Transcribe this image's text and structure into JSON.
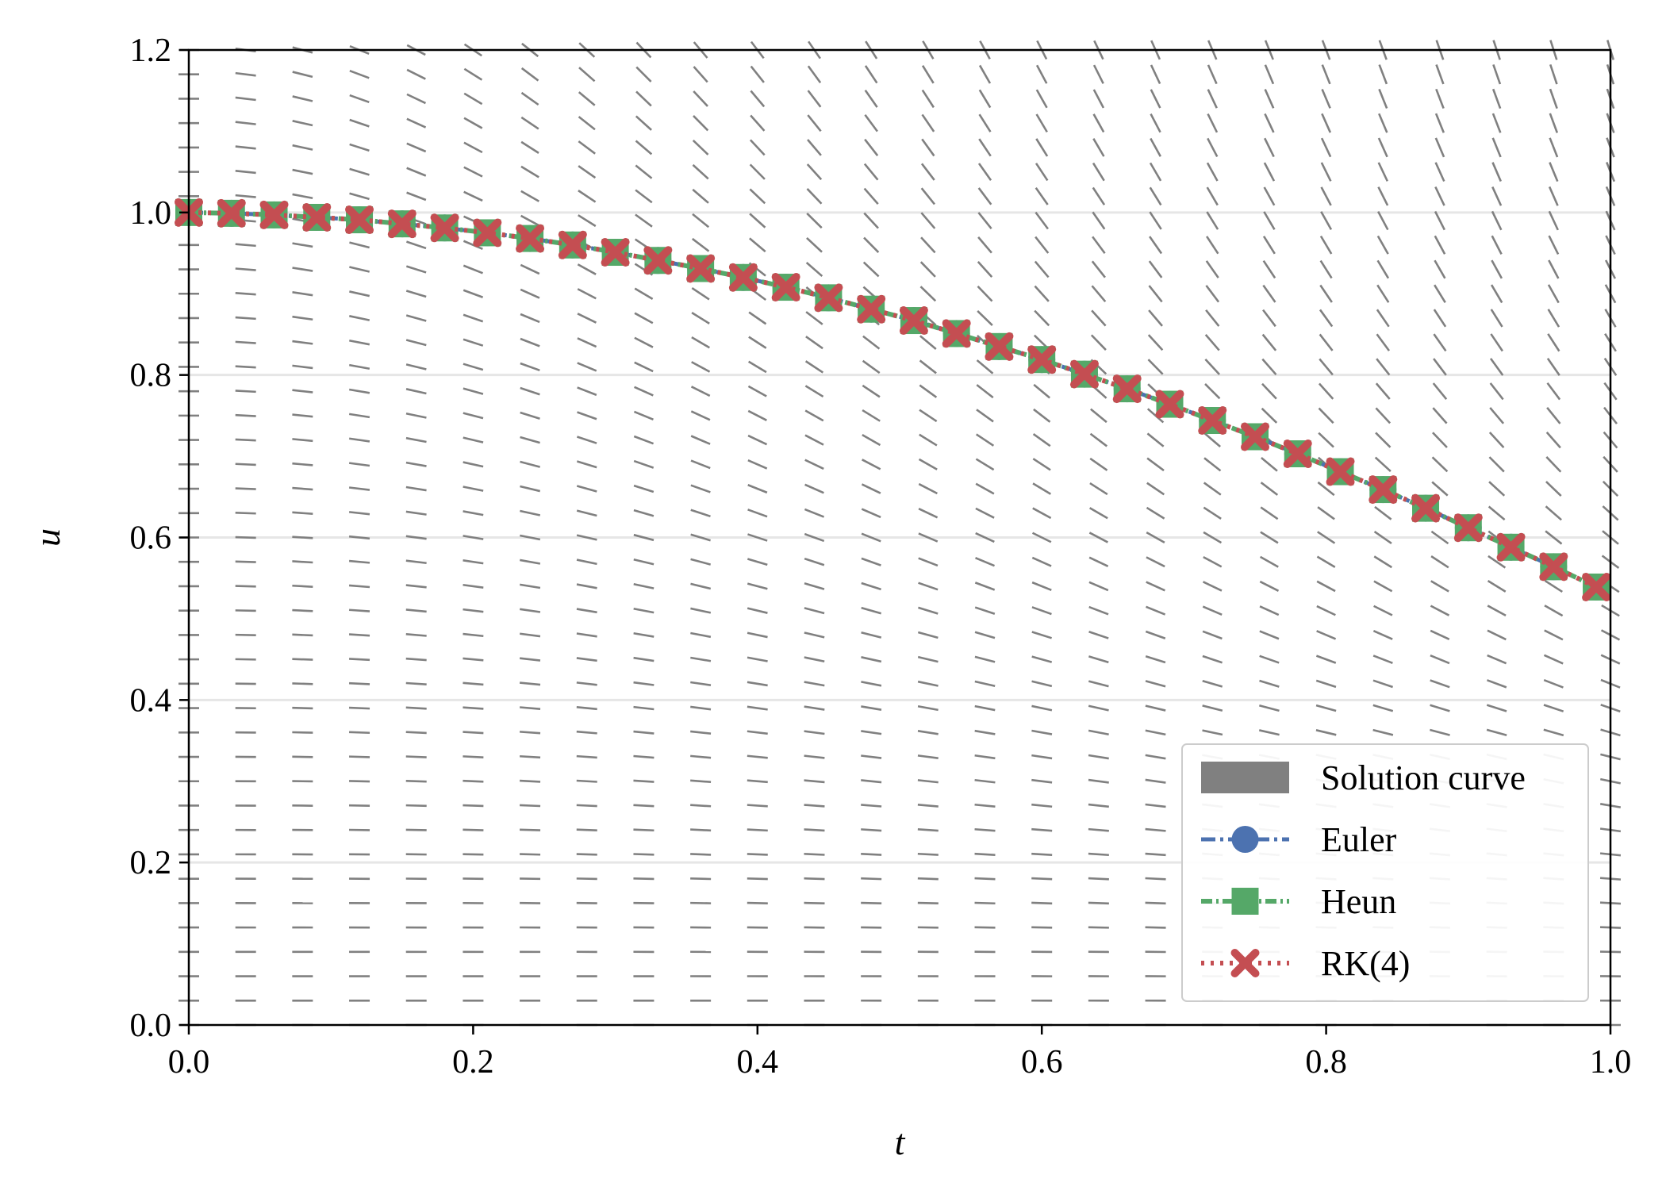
{
  "chart_data": {
    "type": "line",
    "xlabel": "t",
    "ylabel": "u",
    "xlim": [
      0.0,
      1.0
    ],
    "ylim": [
      0.0,
      1.2
    ],
    "xticks": [
      "0.0",
      "0.2",
      "0.4",
      "0.6",
      "0.8",
      "1.0"
    ],
    "yticks": [
      "0.0",
      "0.2",
      "0.4",
      "0.6",
      "0.8",
      "1.0",
      "1.2"
    ],
    "grid": "horizontal",
    "legend_position": "lower-right",
    "direction_field": {
      "t_columns": [
        0.0,
        0.04,
        0.08,
        0.12,
        0.16,
        0.2,
        0.24,
        0.28,
        0.32,
        0.36,
        0.4,
        0.44,
        0.48,
        0.52,
        0.56,
        0.6,
        0.64,
        0.68,
        0.72,
        0.76,
        0.8,
        0.84,
        0.88,
        0.92,
        0.96,
        1.0
      ],
      "color": "#808080"
    },
    "x": [
      0.0,
      0.03,
      0.06,
      0.09,
      0.12,
      0.15,
      0.18,
      0.21,
      0.24,
      0.27,
      0.3,
      0.33,
      0.36,
      0.39,
      0.42,
      0.45,
      0.48,
      0.51,
      0.54,
      0.57,
      0.6,
      0.63,
      0.66,
      0.69,
      0.72,
      0.75,
      0.78,
      0.81,
      0.84,
      0.87,
      0.9,
      0.93,
      0.96,
      0.99
    ],
    "series": [
      {
        "name": "Solution curve",
        "style": "patch",
        "color": "#808080"
      },
      {
        "name": "Euler",
        "style": "line-dashdot",
        "marker": "circle",
        "color": "#4c72b0",
        "values": [
          1.0,
          0.999,
          0.997,
          0.994,
          0.991,
          0.986,
          0.981,
          0.975,
          0.968,
          0.96,
          0.951,
          0.941,
          0.931,
          0.92,
          0.908,
          0.895,
          0.881,
          0.867,
          0.851,
          0.835,
          0.819,
          0.801,
          0.783,
          0.764,
          0.744,
          0.724,
          0.703,
          0.681,
          0.659,
          0.636,
          0.612,
          0.588,
          0.564,
          0.539
        ]
      },
      {
        "name": "Heun",
        "style": "line-dotted",
        "marker": "square",
        "color": "#55a868",
        "values": [
          1.0,
          0.999,
          0.997,
          0.994,
          0.991,
          0.986,
          0.981,
          0.975,
          0.968,
          0.96,
          0.951,
          0.941,
          0.931,
          0.92,
          0.908,
          0.895,
          0.881,
          0.867,
          0.851,
          0.835,
          0.819,
          0.801,
          0.783,
          0.764,
          0.744,
          0.724,
          0.703,
          0.681,
          0.659,
          0.636,
          0.612,
          0.588,
          0.564,
          0.539
        ]
      },
      {
        "name": "RK(4)",
        "style": "dotted",
        "marker": "x",
        "color": "#c44e52",
        "values": [
          1.0,
          0.999,
          0.997,
          0.994,
          0.991,
          0.986,
          0.981,
          0.975,
          0.968,
          0.96,
          0.951,
          0.941,
          0.931,
          0.92,
          0.908,
          0.895,
          0.881,
          0.867,
          0.851,
          0.835,
          0.819,
          0.801,
          0.783,
          0.764,
          0.744,
          0.724,
          0.703,
          0.681,
          0.659,
          0.636,
          0.612,
          0.588,
          0.564,
          0.539
        ]
      }
    ]
  }
}
